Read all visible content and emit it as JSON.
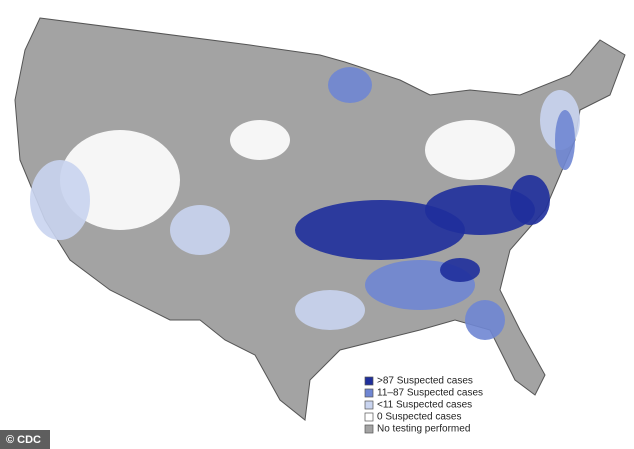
{
  "legend": {
    "items": [
      {
        "label": ">87 Suspected cases",
        "color": "#1f2f9c"
      },
      {
        "label": "11–87 Suspected cases",
        "color": "#6f86d3"
      },
      {
        "label": "<11 Suspected cases",
        "color": "#c9d4ef"
      },
      {
        "label": "0 Suspected cases",
        "color": "#ffffff"
      },
      {
        "label": "No testing performed",
        "color": "#a3a3a3"
      }
    ]
  },
  "credit": "© CDC"
}
